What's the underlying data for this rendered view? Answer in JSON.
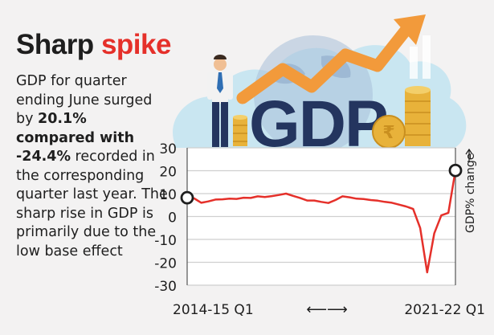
{
  "title": {
    "word1": "Sharp",
    "word2": "spike"
  },
  "description": {
    "part1": "GDP for quarter ending June surged by ",
    "bold1": "20.1% compared with -24.4%",
    "part2": " recorded in the corresponding quarter last year. The sharp rise in GDP is primarily due to the low base effect"
  },
  "illustration": {
    "gdp_text": "GDP",
    "coin_symbol": "₹"
  },
  "colors": {
    "line": "#e5302a",
    "accent": "#e5302a",
    "orange": "#f29a3b",
    "navy": "#24355f",
    "gold": "#e8b23a",
    "sky": "#c9e6f1"
  },
  "chart_data": {
    "type": "line",
    "title": "",
    "xlabel": "",
    "x_start_label": "2014-15 Q1",
    "x_end_label": "2021-22 Q1",
    "arrow_symbol": "⟵⟶",
    "ylabel": "GDP% change",
    "ylim": [
      -30,
      30
    ],
    "yticks": [
      "30",
      "20",
      "10",
      "0",
      "-10",
      "-20",
      "-30"
    ],
    "series": [
      {
        "name": "GDP % change",
        "values": [
          8.2,
          7.9,
          6.0,
          6.6,
          7.4,
          7.5,
          7.8,
          7.7,
          8.2,
          8.1,
          8.8,
          8.5,
          8.9,
          9.4,
          10.0,
          9.0,
          8.1,
          7.0,
          7.0,
          6.4,
          5.9,
          7.2,
          8.8,
          8.4,
          7.8,
          7.6,
          7.2,
          6.9,
          6.4,
          6.0,
          5.2,
          4.4,
          3.3,
          -5.0,
          -24.4,
          -7.4,
          0.5,
          1.6,
          20.1
        ]
      }
    ],
    "highlights": [
      {
        "index": 0,
        "value": 8.2
      },
      {
        "index": 38,
        "value": 20.1
      }
    ]
  }
}
